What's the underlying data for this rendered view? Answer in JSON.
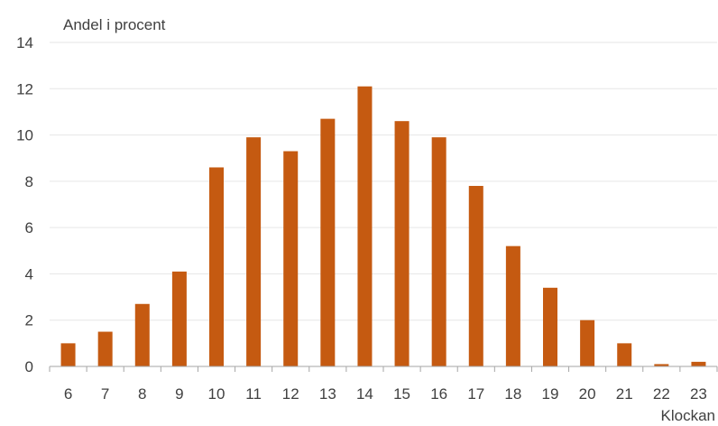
{
  "chart_data": {
    "type": "bar",
    "ylabel": "Andel i procent",
    "xlabel": "Klockan",
    "categories": [
      "6",
      "7",
      "8",
      "9",
      "10",
      "11",
      "12",
      "13",
      "14",
      "15",
      "16",
      "17",
      "18",
      "19",
      "20",
      "21",
      "22",
      "23"
    ],
    "values": [
      1.0,
      1.5,
      2.7,
      4.1,
      8.6,
      9.9,
      9.3,
      10.7,
      12.1,
      10.6,
      9.9,
      7.8,
      5.2,
      3.4,
      2.0,
      1.0,
      0.1,
      0.2
    ],
    "ylim": [
      0,
      14
    ],
    "yticks": [
      "0",
      "2",
      "4",
      "6",
      "8",
      "10",
      "12",
      "14"
    ],
    "grid": true,
    "legend": "none",
    "bar_color": "#c55a11"
  }
}
